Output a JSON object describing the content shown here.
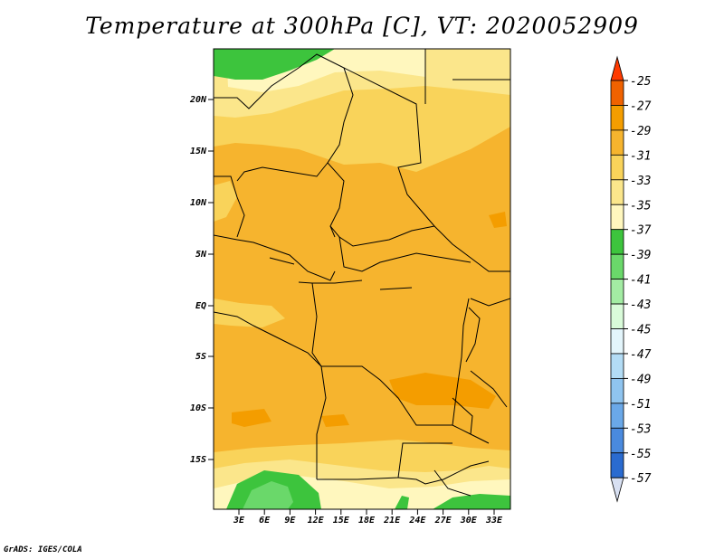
{
  "title": "Temperature at 300hPa [C], VT: 2020052909",
  "credit": "GrADS: IGES/COLA",
  "map": {
    "lat_ticks": [
      "20N",
      "15N",
      "10N",
      "5N",
      "EQ",
      "5S",
      "10S",
      "15S"
    ],
    "lon_ticks": [
      "3E",
      "6E",
      "9E",
      "12E",
      "15E",
      "18E",
      "21E",
      "24E",
      "27E",
      "30E",
      "33E"
    ]
  },
  "colorbar": {
    "labels": [
      "-25",
      "-27",
      "-29",
      "-31",
      "-33",
      "-35",
      "-37",
      "-39",
      "-41",
      "-43",
      "-45",
      "-47",
      "-49",
      "-51",
      "-53",
      "-55",
      "-57"
    ],
    "colors": [
      "#ff3a00",
      "#f06200",
      "#f49d00",
      "#f6b42e",
      "#f9d35a",
      "#fbe68b",
      "#fff7be",
      "#3dc43d",
      "#6ad86a",
      "#a3eca3",
      "#d9fbd9",
      "#e3f5fb",
      "#b3dcf5",
      "#8fc4ef",
      "#6aa8e8",
      "#4a8ade",
      "#2a6bd0",
      "#1548b8",
      "#0a2a90",
      "#d8e0f2"
    ]
  },
  "palette": {
    "orange": "#f6b42e",
    "dark_orange": "#f49d00",
    "yellow_light": "#fbe68b",
    "cream": "#fff7be",
    "green": "#3dc43d",
    "green_light": "#6ad86a",
    "green_pale": "#a3eca3"
  }
}
